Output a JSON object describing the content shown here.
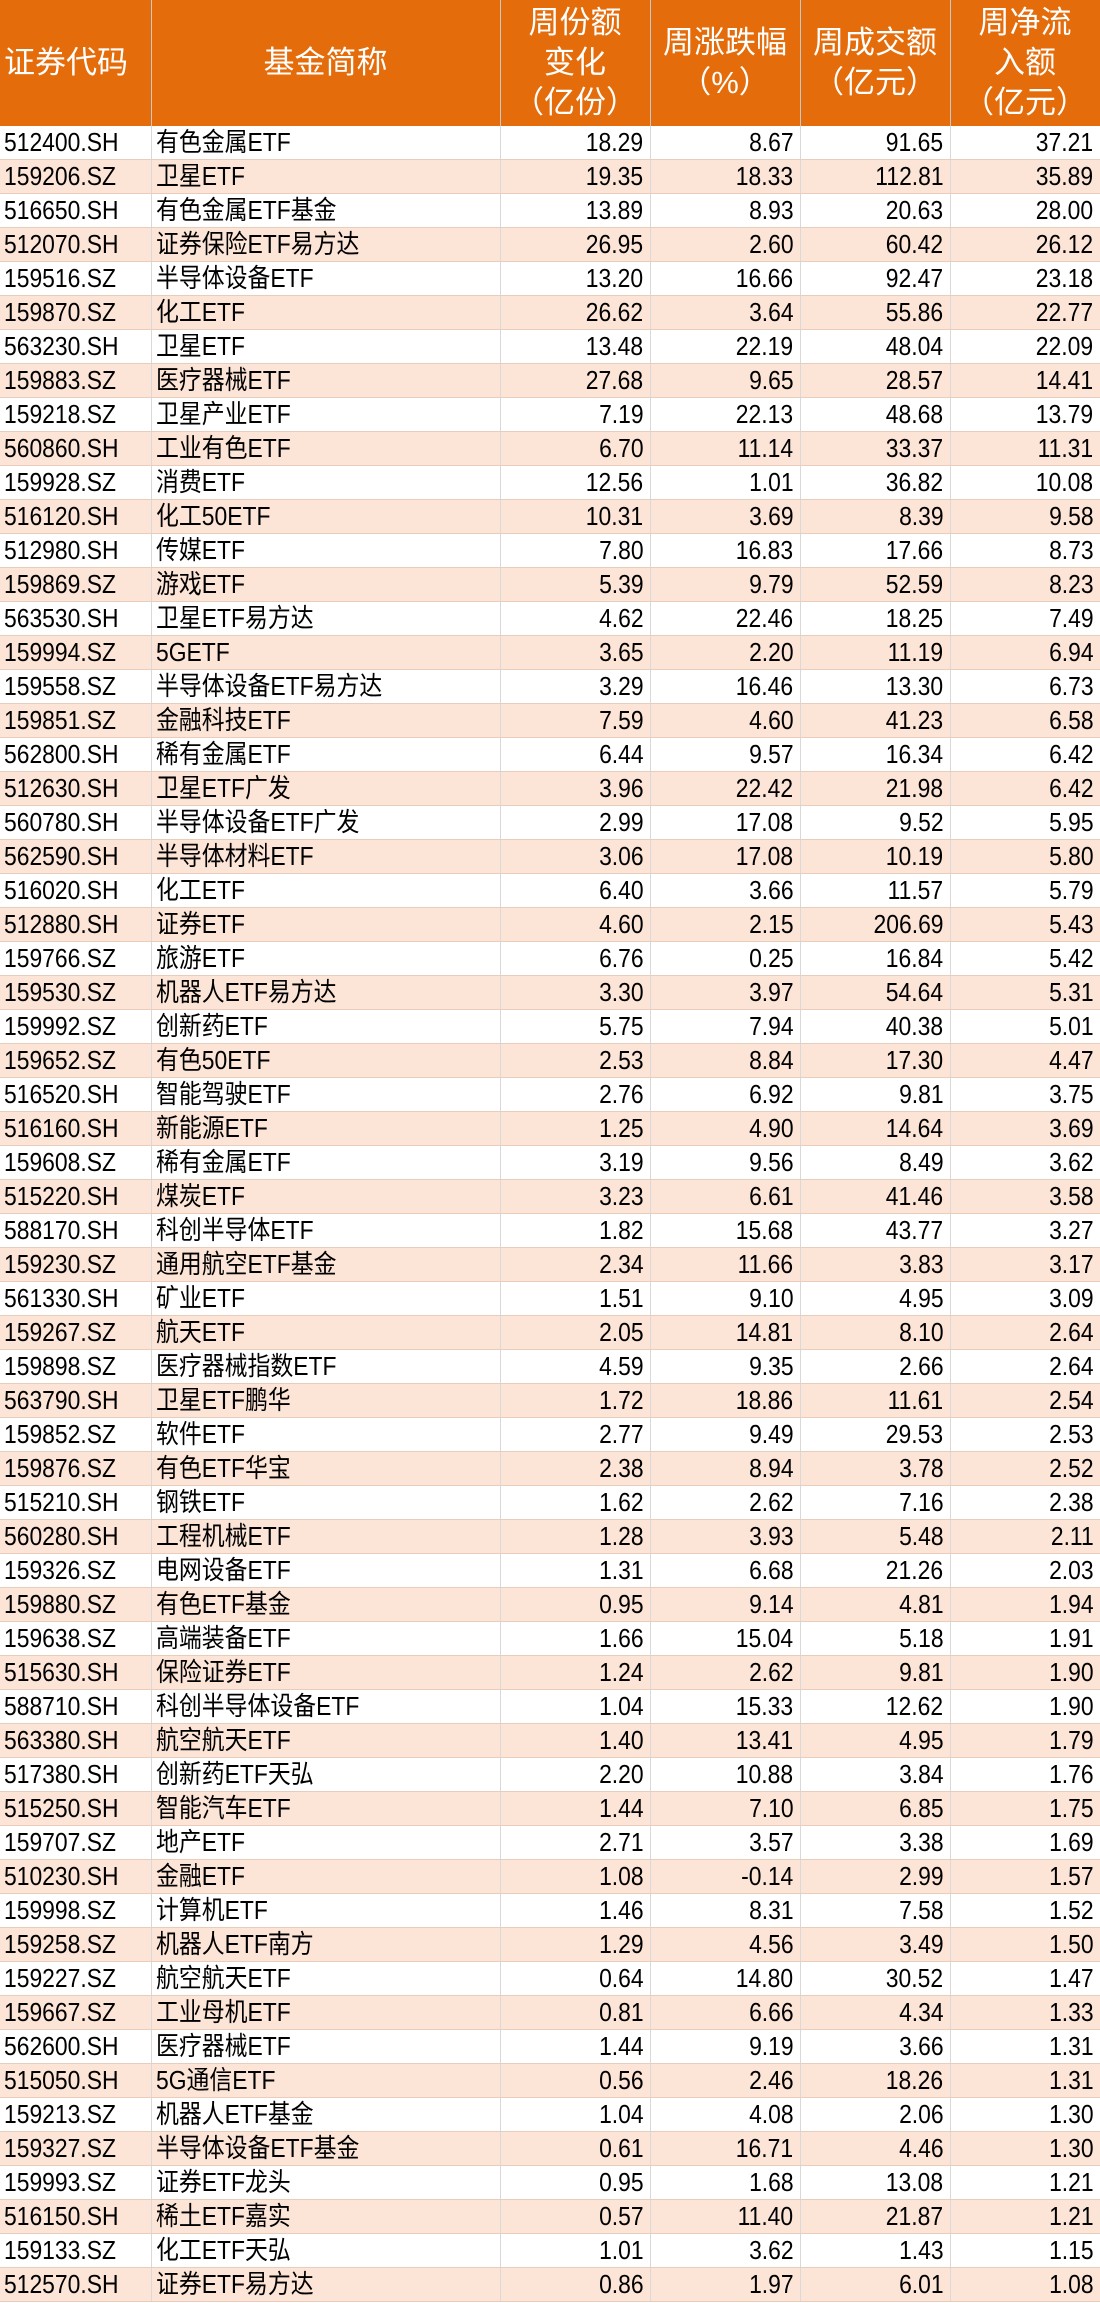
{
  "colors": {
    "header_bg": "#E46C0A",
    "header_text": "#FFFFFF",
    "alt_row": "#FCE4D6"
  },
  "headers": [
    "证券代码",
    "基金简称",
    "周份额\n变化\n（亿份）",
    "周涨跌幅\n（%）",
    "周成交额\n（亿元）",
    "周净流\n入额\n（亿元）"
  ],
  "rows": [
    [
      "512400.SH",
      "有色金属ETF",
      "18.29",
      "8.67",
      "91.65",
      "37.21"
    ],
    [
      "159206.SZ",
      "卫星ETF",
      "19.35",
      "18.33",
      "112.81",
      "35.89"
    ],
    [
      "516650.SH",
      "有色金属ETF基金",
      "13.89",
      "8.93",
      "20.63",
      "28.00"
    ],
    [
      "512070.SH",
      "证券保险ETF易方达",
      "26.95",
      "2.60",
      "60.42",
      "26.12"
    ],
    [
      "159516.SZ",
      "半导体设备ETF",
      "13.20",
      "16.66",
      "92.47",
      "23.18"
    ],
    [
      "159870.SZ",
      "化工ETF",
      "26.62",
      "3.64",
      "55.86",
      "22.77"
    ],
    [
      "563230.SH",
      "卫星ETF",
      "13.48",
      "22.19",
      "48.04",
      "22.09"
    ],
    [
      "159883.SZ",
      "医疗器械ETF",
      "27.68",
      "9.65",
      "28.57",
      "14.41"
    ],
    [
      "159218.SZ",
      "卫星产业ETF",
      "7.19",
      "22.13",
      "48.68",
      "13.79"
    ],
    [
      "560860.SH",
      "工业有色ETF",
      "6.70",
      "11.14",
      "33.37",
      "11.31"
    ],
    [
      "159928.SZ",
      "消费ETF",
      "12.56",
      "1.01",
      "36.82",
      "10.08"
    ],
    [
      "516120.SH",
      "化工50ETF",
      "10.31",
      "3.69",
      "8.39",
      "9.58"
    ],
    [
      "512980.SH",
      "传媒ETF",
      "7.80",
      "16.83",
      "17.66",
      "8.73"
    ],
    [
      "159869.SZ",
      "游戏ETF",
      "5.39",
      "9.79",
      "52.59",
      "8.23"
    ],
    [
      "563530.SH",
      "卫星ETF易方达",
      "4.62",
      "22.46",
      "18.25",
      "7.49"
    ],
    [
      "159994.SZ",
      "5GETF",
      "3.65",
      "2.20",
      "11.19",
      "6.94"
    ],
    [
      "159558.SZ",
      "半导体设备ETF易方达",
      "3.29",
      "16.46",
      "13.30",
      "6.73"
    ],
    [
      "159851.SZ",
      "金融科技ETF",
      "7.59",
      "4.60",
      "41.23",
      "6.58"
    ],
    [
      "562800.SH",
      "稀有金属ETF",
      "6.44",
      "9.57",
      "16.34",
      "6.42"
    ],
    [
      "512630.SH",
      "卫星ETF广发",
      "3.96",
      "22.42",
      "21.98",
      "6.42"
    ],
    [
      "560780.SH",
      "半导体设备ETF广发",
      "2.99",
      "17.08",
      "9.52",
      "5.95"
    ],
    [
      "562590.SH",
      "半导体材料ETF",
      "3.06",
      "17.08",
      "10.19",
      "5.80"
    ],
    [
      "516020.SH",
      "化工ETF",
      "6.40",
      "3.66",
      "11.57",
      "5.79"
    ],
    [
      "512880.SH",
      "证券ETF",
      "4.60",
      "2.15",
      "206.69",
      "5.43"
    ],
    [
      "159766.SZ",
      "旅游ETF",
      "6.76",
      "0.25",
      "16.84",
      "5.42"
    ],
    [
      "159530.SZ",
      "机器人ETF易方达",
      "3.30",
      "3.97",
      "54.64",
      "5.31"
    ],
    [
      "159992.SZ",
      "创新药ETF",
      "5.75",
      "7.94",
      "40.38",
      "5.01"
    ],
    [
      "159652.SZ",
      "有色50ETF",
      "2.53",
      "8.84",
      "17.30",
      "4.47"
    ],
    [
      "516520.SH",
      "智能驾驶ETF",
      "2.76",
      "6.92",
      "9.81",
      "3.75"
    ],
    [
      "516160.SH",
      "新能源ETF",
      "1.25",
      "4.90",
      "14.64",
      "3.69"
    ],
    [
      "159608.SZ",
      "稀有金属ETF",
      "3.19",
      "9.56",
      "8.49",
      "3.62"
    ],
    [
      "515220.SH",
      "煤炭ETF",
      "3.23",
      "6.61",
      "41.46",
      "3.58"
    ],
    [
      "588170.SH",
      "科创半导体ETF",
      "1.82",
      "15.68",
      "43.77",
      "3.27"
    ],
    [
      "159230.SZ",
      "通用航空ETF基金",
      "2.34",
      "11.66",
      "3.83",
      "3.17"
    ],
    [
      "561330.SH",
      "矿业ETF",
      "1.51",
      "9.10",
      "4.95",
      "3.09"
    ],
    [
      "159267.SZ",
      "航天ETF",
      "2.05",
      "14.81",
      "8.10",
      "2.64"
    ],
    [
      "159898.SZ",
      "医疗器械指数ETF",
      "4.59",
      "9.35",
      "2.66",
      "2.64"
    ],
    [
      "563790.SH",
      "卫星ETF鹏华",
      "1.72",
      "18.86",
      "11.61",
      "2.54"
    ],
    [
      "159852.SZ",
      "软件ETF",
      "2.77",
      "9.49",
      "29.53",
      "2.53"
    ],
    [
      "159876.SZ",
      "有色ETF华宝",
      "2.38",
      "8.94",
      "3.78",
      "2.52"
    ],
    [
      "515210.SH",
      "钢铁ETF",
      "1.62",
      "2.62",
      "7.16",
      "2.38"
    ],
    [
      "560280.SH",
      "工程机械ETF",
      "1.28",
      "3.93",
      "5.48",
      "2.11"
    ],
    [
      "159326.SZ",
      "电网设备ETF",
      "1.31",
      "6.68",
      "21.26",
      "2.03"
    ],
    [
      "159880.SZ",
      "有色ETF基金",
      "0.95",
      "9.14",
      "4.81",
      "1.94"
    ],
    [
      "159638.SZ",
      "高端装备ETF",
      "1.66",
      "15.04",
      "5.18",
      "1.91"
    ],
    [
      "515630.SH",
      "保险证券ETF",
      "1.24",
      "2.62",
      "9.81",
      "1.90"
    ],
    [
      "588710.SH",
      "科创半导体设备ETF",
      "1.04",
      "15.33",
      "12.62",
      "1.90"
    ],
    [
      "563380.SH",
      "航空航天ETF",
      "1.40",
      "13.41",
      "4.95",
      "1.79"
    ],
    [
      "517380.SH",
      "创新药ETF天弘",
      "2.20",
      "10.88",
      "3.84",
      "1.76"
    ],
    [
      "515250.SH",
      "智能汽车ETF",
      "1.44",
      "7.10",
      "6.85",
      "1.75"
    ],
    [
      "159707.SZ",
      "地产ETF",
      "2.71",
      "3.57",
      "3.38",
      "1.69"
    ],
    [
      "510230.SH",
      "金融ETF",
      "1.08",
      "-0.14",
      "2.99",
      "1.57"
    ],
    [
      "159998.SZ",
      "计算机ETF",
      "1.46",
      "8.31",
      "7.58",
      "1.52"
    ],
    [
      "159258.SZ",
      "机器人ETF南方",
      "1.29",
      "4.56",
      "3.49",
      "1.50"
    ],
    [
      "159227.SZ",
      "航空航天ETF",
      "0.64",
      "14.80",
      "30.52",
      "1.47"
    ],
    [
      "159667.SZ",
      "工业母机ETF",
      "0.81",
      "6.66",
      "4.34",
      "1.33"
    ],
    [
      "562600.SH",
      "医疗器械ETF",
      "1.44",
      "9.19",
      "3.66",
      "1.31"
    ],
    [
      "515050.SH",
      "5G通信ETF",
      "0.56",
      "2.46",
      "18.26",
      "1.31"
    ],
    [
      "159213.SZ",
      "机器人ETF基金",
      "1.04",
      "4.08",
      "2.06",
      "1.30"
    ],
    [
      "159327.SZ",
      "半导体设备ETF基金",
      "0.61",
      "16.71",
      "4.46",
      "1.30"
    ],
    [
      "159993.SZ",
      "证券ETF龙头",
      "0.95",
      "1.68",
      "13.08",
      "1.21"
    ],
    [
      "516150.SH",
      "稀土ETF嘉实",
      "0.57",
      "11.40",
      "21.87",
      "1.21"
    ],
    [
      "159133.SZ",
      "化工ETF天弘",
      "1.01",
      "3.62",
      "1.43",
      "1.15"
    ],
    [
      "512570.SH",
      "证券ETF易方达",
      "0.86",
      "1.97",
      "6.01",
      "1.08"
    ]
  ]
}
